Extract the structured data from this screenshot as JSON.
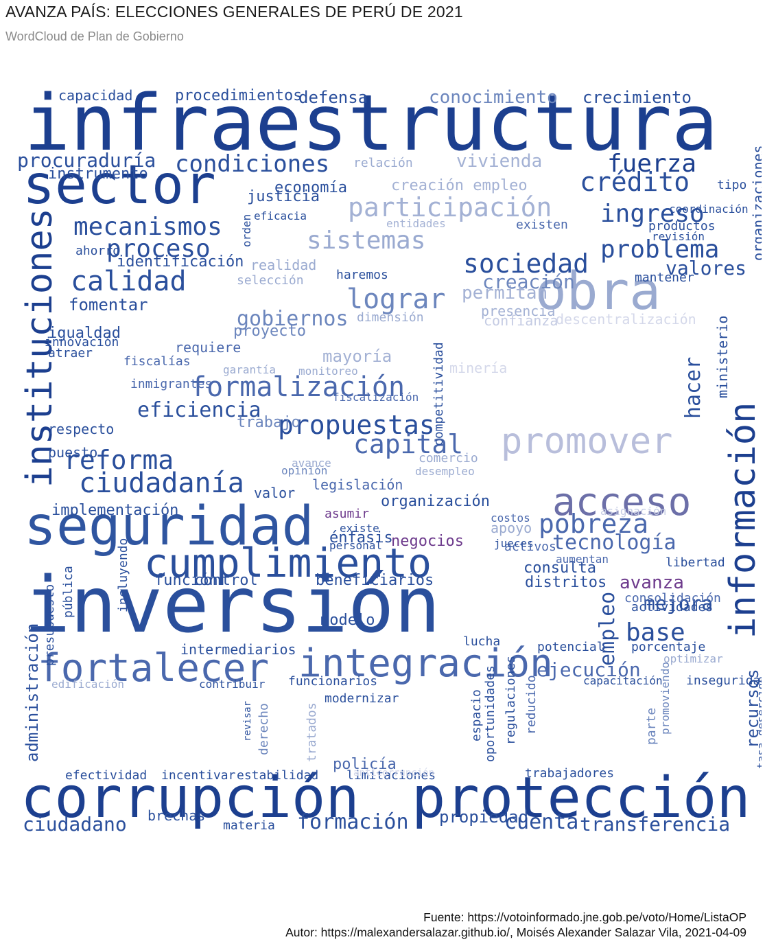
{
  "header": {
    "title": "AVANZA PAÍS: ELECCIONES GENERALES DE PERÚ DE 2021",
    "subtitle": "WordCloud de Plan de Gobierno"
  },
  "palette": {
    "dark_blue": "#1c3f8f",
    "mid_blue": "#3b5ea8",
    "light_blue": "#9aaad0",
    "pale_blue": "#c4cbe3",
    "purple": "#7a3b8f",
    "magenta": "#b0307a"
  },
  "wordcloud": {
    "words": [
      {
        "text": "infraestructura",
        "color": "#1c3f8f"
      },
      {
        "text": "inversión",
        "color": "#2a4f9c"
      },
      {
        "text": "sector",
        "color": "#1c3f8f"
      },
      {
        "text": "seguridad",
        "color": "#2f55a0"
      },
      {
        "text": "corrupción",
        "color": "#1c3f8f"
      },
      {
        "text": "protección",
        "color": "#1c3f8f"
      },
      {
        "text": "fortalecer",
        "color": "#4a68ad"
      },
      {
        "text": "integración",
        "color": "#4a68ad"
      },
      {
        "text": "cumplimiento",
        "color": "#2a4f9c"
      },
      {
        "text": "obra",
        "color": "#9aaad0"
      },
      {
        "text": "información",
        "color": "#1c3f8f"
      },
      {
        "text": "acceso",
        "color": "#6c6fa8"
      },
      {
        "text": "promover",
        "color": "#b8bedb"
      },
      {
        "text": "instituciones",
        "color": "#1c3f8f"
      },
      {
        "text": "participación",
        "color": "#a3b1d4"
      },
      {
        "text": "formalización",
        "color": "#4a68ad"
      },
      {
        "text": "propuestas",
        "color": "#2a4f9c"
      },
      {
        "text": "condiciones",
        "color": "#2a4f9c"
      },
      {
        "text": "crédito",
        "color": "#2a4f9c"
      },
      {
        "text": "fuerza",
        "color": "#1c3f8f"
      },
      {
        "text": "calidad",
        "color": "#2a4f9c"
      },
      {
        "text": "mecanismos",
        "color": "#2a4f9c"
      },
      {
        "text": "proceso",
        "color": "#2a4f9c"
      },
      {
        "text": "sociedad",
        "color": "#2a4f9c"
      },
      {
        "text": "problema",
        "color": "#2a4f9c"
      },
      {
        "text": "ciudadanía",
        "color": "#2a4f9c"
      },
      {
        "text": "reforma",
        "color": "#2a4f9c"
      },
      {
        "text": "capital",
        "color": "#4a68ad"
      },
      {
        "text": "pobreza",
        "color": "#4a68ad"
      },
      {
        "text": "tecnología",
        "color": "#4a68ad"
      },
      {
        "text": "sistemas",
        "color": "#9aaad0"
      },
      {
        "text": "ingreso",
        "color": "#2a4f9c"
      },
      {
        "text": "procuraduría",
        "color": "#2a4f9c"
      },
      {
        "text": "lograr",
        "color": "#6c86bd"
      },
      {
        "text": "gobiernos",
        "color": "#6c86bd"
      },
      {
        "text": "eficiencia",
        "color": "#2a4f9c"
      },
      {
        "text": "formación",
        "color": "#2a4f9c"
      },
      {
        "text": "ciudadano",
        "color": "#2a4f9c"
      },
      {
        "text": "cuenta",
        "color": "#2a4f9c"
      },
      {
        "text": "transferencia",
        "color": "#2a4f9c"
      },
      {
        "text": "propiedad",
        "color": "#2a4f9c"
      },
      {
        "text": "administración",
        "color": "#2a4f9c"
      },
      {
        "text": "empleo",
        "color": "#2a4f9c"
      },
      {
        "text": "base",
        "color": "#2a4f9c"
      },
      {
        "text": "hacer",
        "color": "#2a4f9c"
      },
      {
        "text": "mejora",
        "color": "#2a4f9c"
      },
      {
        "text": "avanza",
        "color": "#6d3a8c"
      },
      {
        "text": "valores",
        "color": "#2a4f9c"
      },
      {
        "text": "creación",
        "color": "#6c86bd"
      },
      {
        "text": "vivienda",
        "color": "#a3b1d4"
      },
      {
        "text": "conocimiento",
        "color": "#6c86bd"
      },
      {
        "text": "crecimiento",
        "color": "#2a4f9c"
      },
      {
        "text": "procedimientos",
        "color": "#2a4f9c"
      },
      {
        "text": "defensa",
        "color": "#2a4f9c"
      },
      {
        "text": "capacidad",
        "color": "#2a4f9c"
      },
      {
        "text": "función",
        "color": "#2a4f9c"
      },
      {
        "text": "control",
        "color": "#2a4f9c"
      },
      {
        "text": "beneficiarios",
        "color": "#2a4f9c"
      },
      {
        "text": "consulta",
        "color": "#2a4f9c"
      },
      {
        "text": "distritos",
        "color": "#2a4f9c"
      },
      {
        "text": "ejecución",
        "color": "#4a68ad"
      },
      {
        "text": "recursos",
        "color": "#2a4f9c"
      },
      {
        "text": "policía",
        "color": "#4a68ad"
      },
      {
        "text": "brechas",
        "color": "#2a4f9c"
      },
      {
        "text": "materia",
        "color": "#2a4f9c"
      },
      {
        "text": "efectividad",
        "color": "#2a4f9c"
      },
      {
        "text": "incentivar",
        "color": "#2a4f9c"
      },
      {
        "text": "estabilidad",
        "color": "#2a4f9c"
      },
      {
        "text": "limitaciones",
        "color": "#2a4f9c"
      },
      {
        "text": "trabajadores",
        "color": "#2a4f9c"
      },
      {
        "text": "implementación",
        "color": "#2a4f9c"
      },
      {
        "text": "fomentar",
        "color": "#2a4f9c"
      },
      {
        "text": "igualdad",
        "color": "#2a4f9c"
      },
      {
        "text": "identificación",
        "color": "#2a4f9c"
      },
      {
        "text": "economía",
        "color": "#2a4f9c"
      },
      {
        "text": "justicia",
        "color": "#2a4f9c"
      },
      {
        "text": "mayoría",
        "color": "#a3b1d4"
      },
      {
        "text": "minería",
        "color": "#d4d8ea"
      },
      {
        "text": "creación empleo",
        "color": "#a3b1d4"
      },
      {
        "text": "entidades",
        "color": "#a3b1d4"
      },
      {
        "text": "existen",
        "color": "#4a68ad"
      },
      {
        "text": "productos",
        "color": "#2a4f9c"
      },
      {
        "text": "coordinación",
        "color": "#2a4f9c"
      },
      {
        "text": "revisión",
        "color": "#2a4f9c"
      },
      {
        "text": "permitan",
        "color": "#a3b1d4"
      },
      {
        "text": "presencia",
        "color": "#a3b1d4"
      },
      {
        "text": "confianza",
        "color": "#c4cbe3"
      },
      {
        "text": "descentralización",
        "color": "#d4d8ea"
      },
      {
        "text": "tipo",
        "color": "#2a4f9c"
      },
      {
        "text": "mantener",
        "color": "#2a4f9c"
      },
      {
        "text": "ministerio",
        "color": "#2a4f9c"
      },
      {
        "text": "organizaciones",
        "color": "#2a4f9c"
      },
      {
        "text": "organización",
        "color": "#2a4f9c"
      },
      {
        "text": "legislación",
        "color": "#4a68ad"
      },
      {
        "text": "valor",
        "color": "#2a4f9c"
      },
      {
        "text": "negocios",
        "color": "#6d3a8c"
      },
      {
        "text": "énfasis",
        "color": "#2a4f9c"
      },
      {
        "text": "asumir",
        "color": "#6d3a8c"
      },
      {
        "text": "personal",
        "color": "#2a4f9c"
      },
      {
        "text": "activos",
        "color": "#4a68ad"
      },
      {
        "text": "apoyo",
        "color": "#9aaad0"
      },
      {
        "text": "libertad",
        "color": "#2a4f9c"
      },
      {
        "text": "modelo",
        "color": "#2a4f9c"
      },
      {
        "text": "intermediarios",
        "color": "#2a4f9c"
      },
      {
        "text": "funcionarios",
        "color": "#2a4f9c"
      },
      {
        "text": "modernizar",
        "color": "#2a4f9c"
      },
      {
        "text": "porcentaje",
        "color": "#2a4f9c"
      },
      {
        "text": "actividades",
        "color": "#2a4f9c"
      },
      {
        "text": "inseguridad",
        "color": "#2a4f9c"
      },
      {
        "text": "optimizar",
        "color": "#9aaad0"
      },
      {
        "text": "potencial",
        "color": "#2a4f9c"
      },
      {
        "text": "capacitación",
        "color": "#2a4f9c"
      },
      {
        "text": "trabajo",
        "color": "#6c86bd"
      },
      {
        "text": "proyecto",
        "color": "#6c86bd"
      },
      {
        "text": "requiere",
        "color": "#4a68ad"
      },
      {
        "text": "innovación",
        "color": "#2a4f9c"
      },
      {
        "text": "atraer",
        "color": "#2a4f9c"
      },
      {
        "text": "fiscalías",
        "color": "#4a68ad"
      },
      {
        "text": "inmigrantes",
        "color": "#4a68ad"
      },
      {
        "text": "respecto",
        "color": "#2a4f9c"
      },
      {
        "text": "puesto",
        "color": "#2a4f9c"
      },
      {
        "text": "ahorro",
        "color": "#2a4f9c"
      },
      {
        "text": "instrumento",
        "color": "#2a4f9c"
      },
      {
        "text": "orden",
        "color": "#2a4f9c"
      },
      {
        "text": "eficacia",
        "color": "#2a4f9c"
      },
      {
        "text": "realidad",
        "color": "#9aaad0"
      },
      {
        "text": "selección",
        "color": "#9aaad0"
      },
      {
        "text": "haremos",
        "color": "#2a4f9c"
      },
      {
        "text": "dimensión",
        "color": "#9aaad0"
      },
      {
        "text": "relación",
        "color": "#9aaad0"
      },
      {
        "text": "garantía",
        "color": "#9aaad0"
      },
      {
        "text": "monitoreo",
        "color": "#9aaad0"
      },
      {
        "text": "fiscalización",
        "color": "#4a68ad"
      },
      {
        "text": "comercio",
        "color": "#9aaad0"
      },
      {
        "text": "desempleo",
        "color": "#9aaad0"
      },
      {
        "text": "opinión",
        "color": "#6c86bd"
      },
      {
        "text": "avance",
        "color": "#9aaad0"
      },
      {
        "text": "edificación",
        "color": "#9aaad0"
      },
      {
        "text": "contribuir",
        "color": "#2a4f9c"
      },
      {
        "text": "presupuesto",
        "color": "#2a4f9c"
      },
      {
        "text": "incluyendo",
        "color": "#2a4f9c"
      },
      {
        "text": "pública",
        "color": "#2a4f9c"
      },
      {
        "text": "tratados",
        "color": "#9aaad0"
      },
      {
        "text": "espacio",
        "color": "#2a4f9c"
      },
      {
        "text": "oportunidades",
        "color": "#2a4f9c"
      },
      {
        "text": "regulaciones",
        "color": "#2a4f9c"
      },
      {
        "text": "reducido",
        "color": "#4a68ad"
      },
      {
        "text": "parte",
        "color": "#6c86bd"
      },
      {
        "text": "promoviendo",
        "color": "#6c86bd"
      },
      {
        "text": "derecho",
        "color": "#6c86bd"
      },
      {
        "text": "revisar",
        "color": "#2a4f9c"
      },
      {
        "text": "lucha",
        "color": "#2a4f9c"
      },
      {
        "text": "jueces",
        "color": "#2a4f9c"
      },
      {
        "text": "existe",
        "color": "#2a4f9c"
      },
      {
        "text": "aumentan",
        "color": "#4a68ad"
      },
      {
        "text": "consolidación",
        "color": "#4a68ad"
      },
      {
        "text": "tasa deserción",
        "color": "#2a4f9c"
      },
      {
        "text": "competitividad",
        "color": "#2a4f9c"
      },
      {
        "text": "costos",
        "color": "#4a68ad"
      },
      {
        "text": "asignación",
        "color": "#c4cbe3"
      },
      {
        "text": "anticorrupción",
        "color": "#d4d8ea"
      }
    ]
  },
  "footer": {
    "source": "Fuente: https://votoinformado.jne.gob.pe/voto/Home/ListaOP",
    "author": "Autor: https://malexandersalazar.github.io/, Moisés Alexander Salazar Vila, 2021-04-09"
  }
}
